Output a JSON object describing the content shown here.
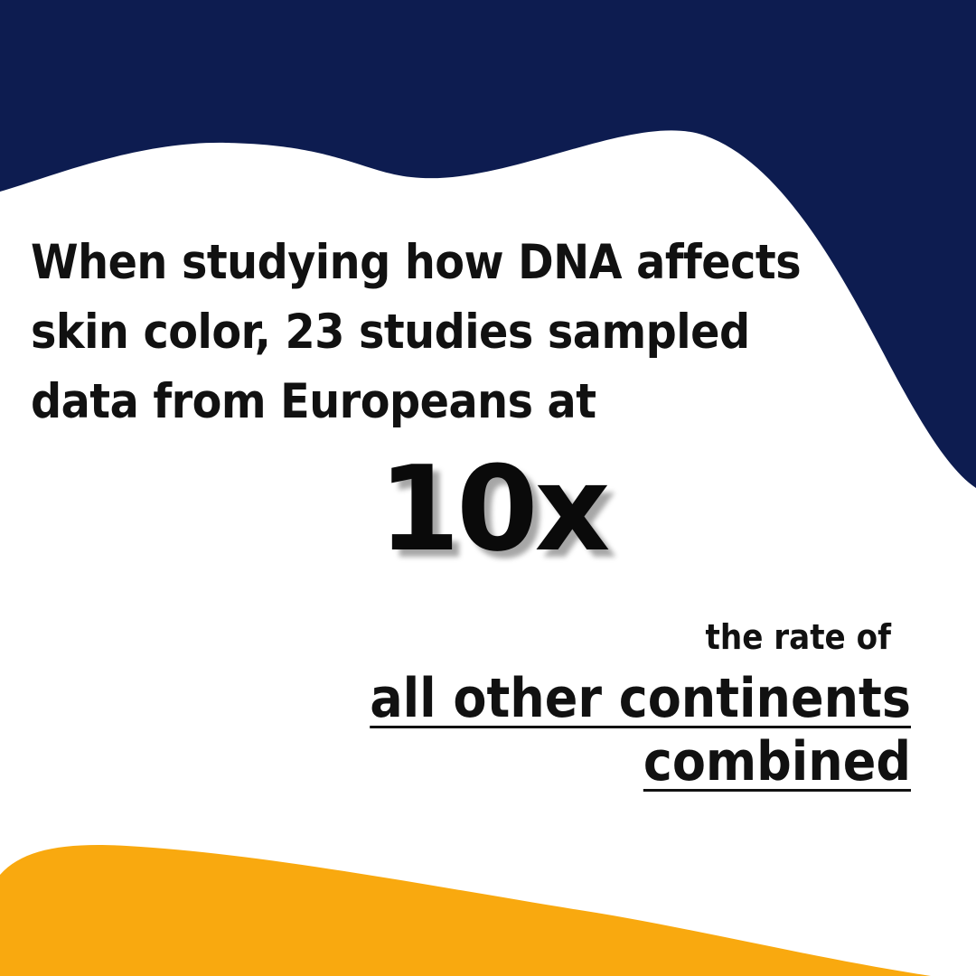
{
  "colors": {
    "top_wave": "#0d1c50",
    "bottom_wave": "#f9a90f",
    "background": "#ffffff",
    "text": "#111111"
  },
  "intro_lines": [
    "When studying how DNA affects",
    "skin color,  23 studies sampled",
    "data from Europeans at"
  ],
  "highlight": "10x",
  "rate_text": "the rate of",
  "conclusion_lines": [
    "all other continents",
    "combined"
  ]
}
